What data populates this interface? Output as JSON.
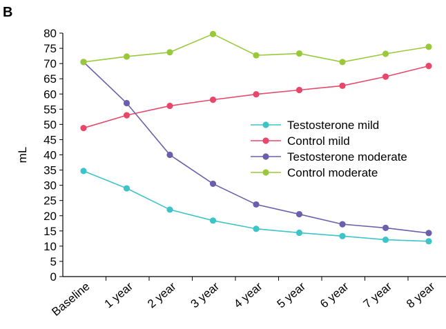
{
  "panel_label": "B",
  "chart_data": {
    "type": "line",
    "title": "",
    "xlabel": "",
    "ylabel": "mL",
    "categories": [
      "Baseline",
      "1 year",
      "2 year",
      "3 year",
      "4 year",
      "5 year",
      "6 year",
      "7 year",
      "8 year"
    ],
    "ylim": [
      0,
      80
    ],
    "yticks": [
      0,
      5,
      10,
      15,
      20,
      25,
      30,
      35,
      40,
      45,
      50,
      55,
      60,
      65,
      70,
      75,
      80
    ],
    "grid": false,
    "legend_position": "center-right",
    "series": [
      {
        "name": "Testosterone mild",
        "color": "#3cc4c8",
        "values": [
          34.7,
          29.0,
          22.0,
          18.4,
          15.7,
          14.4,
          13.3,
          12.1,
          11.6
        ]
      },
      {
        "name": "Control mild",
        "color": "#e8476a",
        "values": [
          48.8,
          53.0,
          56.1,
          58.1,
          59.9,
          61.3,
          62.7,
          65.7,
          69.2
        ]
      },
      {
        "name": "Testosterone moderate",
        "color": "#6a5fad",
        "values": [
          70.5,
          57.0,
          40.0,
          30.5,
          23.7,
          20.5,
          17.2,
          16.0,
          14.3
        ]
      },
      {
        "name": "Control moderate",
        "color": "#99c93b",
        "values": [
          70.5,
          72.3,
          73.7,
          79.7,
          72.7,
          73.3,
          70.5,
          73.2,
          75.5
        ]
      }
    ]
  }
}
